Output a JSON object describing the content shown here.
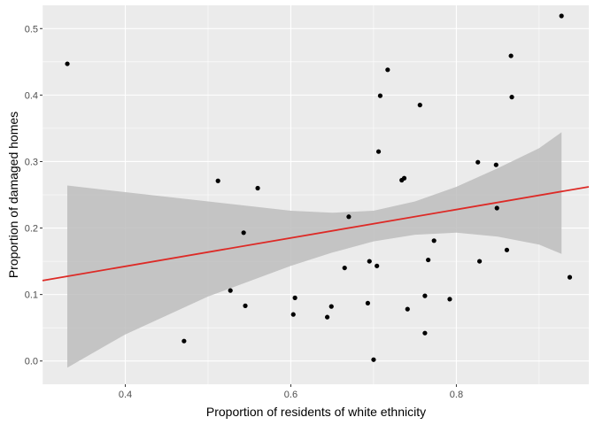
{
  "chart_data": {
    "type": "scatter",
    "title": "",
    "xlabel": "Proportion of residents of white ethnicity",
    "ylabel": "Proportion of damaged homes",
    "xlim": [
      0.3,
      0.96
    ],
    "ylim": [
      -0.035,
      0.535
    ],
    "xticks": [
      0.4,
      0.6,
      0.8
    ],
    "xtick_labels": [
      "0.4",
      "0.6",
      "0.8"
    ],
    "yticks": [
      0.0,
      0.1,
      0.2,
      0.3,
      0.4,
      0.5
    ],
    "ytick_labels": [
      "0.0",
      "0.1",
      "0.2",
      "0.3",
      "0.4",
      "0.5"
    ],
    "grid": true,
    "points": [
      {
        "x": 0.33,
        "y": 0.447
      },
      {
        "x": 0.471,
        "y": 0.03
      },
      {
        "x": 0.512,
        "y": 0.271
      },
      {
        "x": 0.527,
        "y": 0.106
      },
      {
        "x": 0.543,
        "y": 0.193
      },
      {
        "x": 0.545,
        "y": 0.083
      },
      {
        "x": 0.56,
        "y": 0.26
      },
      {
        "x": 0.603,
        "y": 0.07
      },
      {
        "x": 0.605,
        "y": 0.095
      },
      {
        "x": 0.644,
        "y": 0.066
      },
      {
        "x": 0.649,
        "y": 0.082
      },
      {
        "x": 0.665,
        "y": 0.14
      },
      {
        "x": 0.67,
        "y": 0.217
      },
      {
        "x": 0.693,
        "y": 0.087
      },
      {
        "x": 0.695,
        "y": 0.15
      },
      {
        "x": 0.7,
        "y": 0.002
      },
      {
        "x": 0.704,
        "y": 0.143
      },
      {
        "x": 0.706,
        "y": 0.315
      },
      {
        "x": 0.708,
        "y": 0.399
      },
      {
        "x": 0.717,
        "y": 0.438
      },
      {
        "x": 0.734,
        "y": 0.272
      },
      {
        "x": 0.737,
        "y": 0.275
      },
      {
        "x": 0.741,
        "y": 0.078
      },
      {
        "x": 0.756,
        "y": 0.385
      },
      {
        "x": 0.762,
        "y": 0.042
      },
      {
        "x": 0.762,
        "y": 0.098
      },
      {
        "x": 0.766,
        "y": 0.152
      },
      {
        "x": 0.773,
        "y": 0.181
      },
      {
        "x": 0.792,
        "y": 0.093
      },
      {
        "x": 0.826,
        "y": 0.299
      },
      {
        "x": 0.828,
        "y": 0.15
      },
      {
        "x": 0.848,
        "y": 0.295
      },
      {
        "x": 0.849,
        "y": 0.23
      },
      {
        "x": 0.861,
        "y": 0.167
      },
      {
        "x": 0.866,
        "y": 0.459
      },
      {
        "x": 0.867,
        "y": 0.397
      },
      {
        "x": 0.927,
        "y": 0.519
      },
      {
        "x": 0.937,
        "y": 0.126
      }
    ],
    "regression": {
      "method": "lm",
      "line": [
        {
          "x": 0.3,
          "y": 0.121
        },
        {
          "x": 0.96,
          "y": 0.262
        }
      ],
      "confidence_band": [
        {
          "x": 0.33,
          "lower": -0.01,
          "upper": 0.264
        },
        {
          "x": 0.4,
          "lower": 0.04,
          "upper": 0.254
        },
        {
          "x": 0.5,
          "lower": 0.097,
          "upper": 0.24
        },
        {
          "x": 0.6,
          "lower": 0.143,
          "upper": 0.226
        },
        {
          "x": 0.65,
          "lower": 0.163,
          "upper": 0.223
        },
        {
          "x": 0.7,
          "lower": 0.18,
          "upper": 0.226
        },
        {
          "x": 0.75,
          "lower": 0.19,
          "upper": 0.24
        },
        {
          "x": 0.8,
          "lower": 0.193,
          "upper": 0.262
        },
        {
          "x": 0.85,
          "lower": 0.187,
          "upper": 0.29
        },
        {
          "x": 0.9,
          "lower": 0.175,
          "upper": 0.32
        },
        {
          "x": 0.927,
          "lower": 0.161,
          "upper": 0.344
        }
      ]
    },
    "colors": {
      "panel_background": "#ebebeb",
      "gridline": "#ffffff",
      "point": "#000000",
      "fit_line": "#dd2a26",
      "confidence_band": "#bdbdbd"
    }
  }
}
